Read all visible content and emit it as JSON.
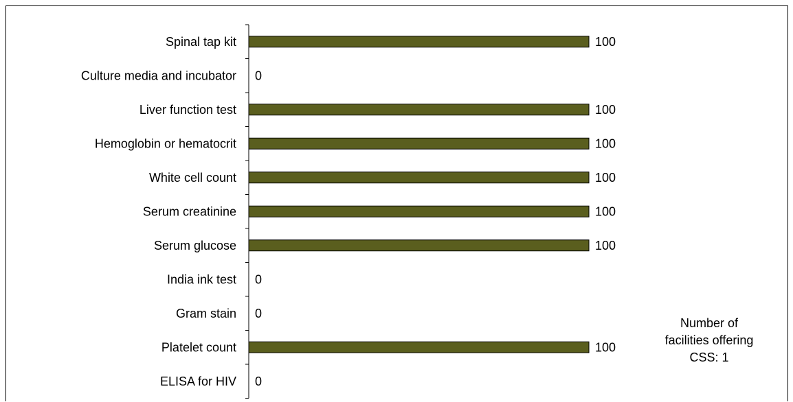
{
  "chart_data": {
    "type": "bar",
    "orientation": "horizontal",
    "categories": [
      "Spinal tap kit",
      "Culture media and incubator",
      "Liver function test",
      "Hemoglobin or hematocrit",
      "White cell count",
      "Serum creatinine",
      "Serum glucose",
      "India ink test",
      "Gram stain",
      "Platelet count",
      "ELISA for HIV"
    ],
    "values": [
      100,
      0,
      100,
      100,
      100,
      100,
      100,
      0,
      0,
      100,
      0
    ],
    "xlim": [
      0,
      100
    ],
    "title": "",
    "xlabel": "",
    "ylabel": "",
    "grid": false,
    "legend": "none",
    "bar_color": "#5a5e1e",
    "note_lines": [
      "Number of",
      "facilities offering",
      "CSS: 1"
    ]
  }
}
